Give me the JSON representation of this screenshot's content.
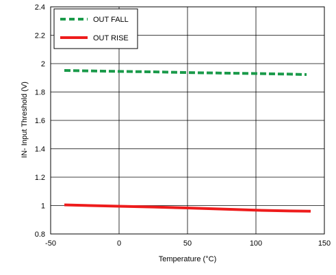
{
  "chart_data": {
    "type": "line",
    "xlabel": "Temperature (°C)",
    "ylabel": "IN- Input Threshold (V)",
    "xlim": [
      -50,
      150
    ],
    "ylim": [
      0.8,
      2.4
    ],
    "xticks": [
      -50,
      0,
      50,
      100,
      150
    ],
    "yticks": [
      0.8,
      1,
      1.2,
      1.4,
      1.6,
      1.8,
      2,
      2.2,
      2.4
    ],
    "grid": true,
    "legend_position": "top-left",
    "series": [
      {
        "name": "OUT FALL",
        "color": "#1a9a4a",
        "dash": "dashed",
        "x": [
          -40,
          0,
          25,
          50,
          85,
          100,
          125,
          137
        ],
        "y": [
          1.952,
          1.945,
          1.942,
          1.937,
          1.932,
          1.93,
          1.926,
          1.923
        ]
      },
      {
        "name": "OUT RISE",
        "color": "#ee1c1c",
        "dash": "solid",
        "x": [
          -40,
          0,
          25,
          50,
          85,
          100,
          125,
          140
        ],
        "y": [
          1.005,
          0.995,
          0.99,
          0.983,
          0.972,
          0.967,
          0.962,
          0.96
        ]
      }
    ]
  }
}
